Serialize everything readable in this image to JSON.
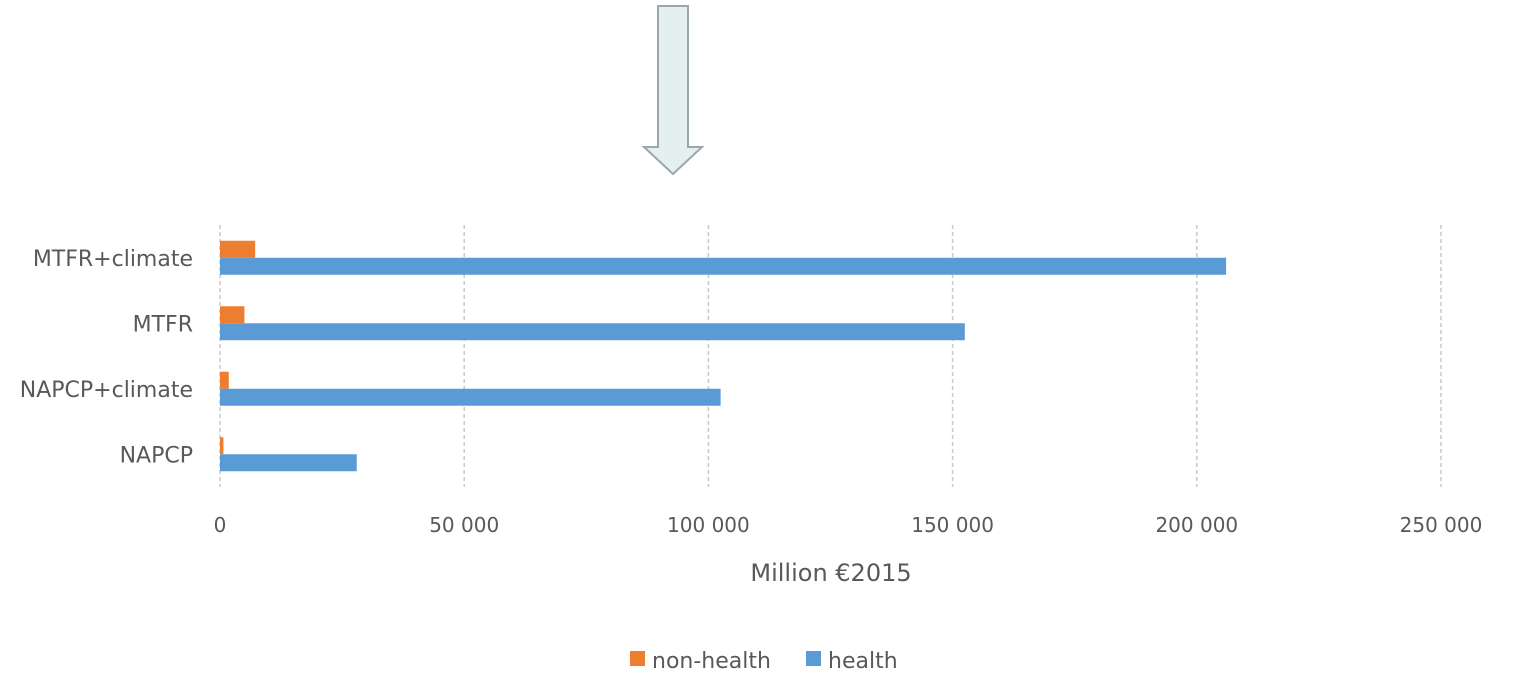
{
  "chart_data": {
    "type": "bar",
    "orientation": "horizontal",
    "categories": [
      "NAPCP",
      "NAPCP+climate",
      "MTFR",
      "MTFR+climate"
    ],
    "series": [
      {
        "name": "non-health",
        "color": "#ed7d31",
        "values": [
          700,
          1800,
          5000,
          7200
        ]
      },
      {
        "name": "health",
        "color": "#5b9bd5",
        "values": [
          28000,
          102500,
          152500,
          206000
        ]
      }
    ],
    "x_ticks": [
      "0",
      "50 000",
      "100 000",
      "150 000",
      "200 000",
      "250 000"
    ],
    "xlim": [
      0,
      250000
    ],
    "xlabel": "Million €2015",
    "grid": true,
    "legend_position": "bottom"
  },
  "decoration": {
    "arrow_color": "#e4eff0",
    "arrow_stroke": "#9aa8ab",
    "arrow_icon": "down-arrow-icon"
  }
}
